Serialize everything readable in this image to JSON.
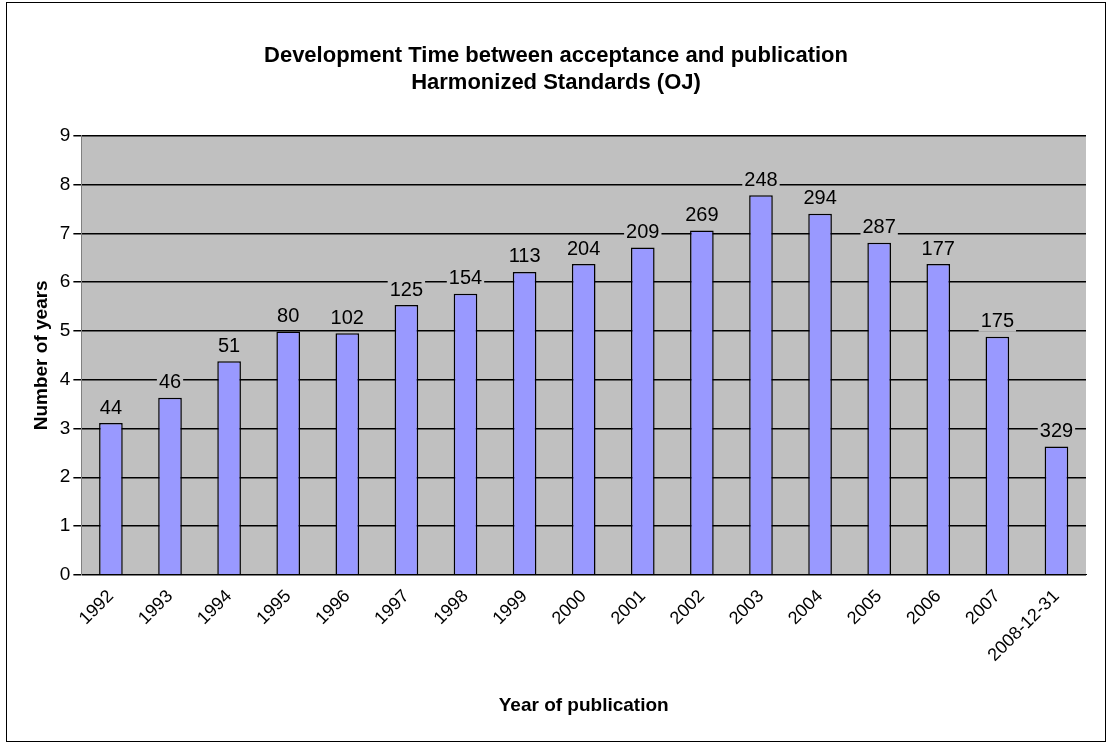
{
  "chart_data": {
    "type": "bar",
    "title": "Development Time between acceptance and publication\nHarmonized Standards (OJ)",
    "xlabel": "Year of publication",
    "ylabel": "Number of years",
    "categories": [
      "1992",
      "1993",
      "1994",
      "1995",
      "1996",
      "1997",
      "1998",
      "1999",
      "2000",
      "2001",
      "2002",
      "2003",
      "2004",
      "2005",
      "2006",
      "2007",
      "2008-12-31"
    ],
    "values": [
      3.11,
      3.63,
      4.38,
      4.99,
      4.95,
      5.53,
      5.76,
      6.21,
      6.37,
      6.71,
      7.06,
      7.78,
      7.4,
      6.81,
      6.37,
      4.88,
      2.63
    ],
    "annotations": [
      {
        "text": "44",
        "x": "1992",
        "y": 3.11
      },
      {
        "text": "46",
        "x": "1993",
        "y": 3.63
      },
      {
        "text": "51",
        "x": "1994",
        "y": 4.38
      },
      {
        "text": "80",
        "x": "1995",
        "y": 4.99
      },
      {
        "text": "102",
        "x": "1996",
        "y": 4.95
      },
      {
        "text": "125",
        "x": "1997",
        "y": 5.53
      },
      {
        "text": "154",
        "x": "1998",
        "y": 5.76
      },
      {
        "text": "113",
        "x": "1999",
        "y": 6.21
      },
      {
        "text": "204",
        "x": "2000",
        "y": 6.37
      },
      {
        "text": "209",
        "x": "2001",
        "y": 6.71
      },
      {
        "text": "269",
        "x": "2002",
        "y": 7.06
      },
      {
        "text": "248",
        "x": "2003",
        "y": 7.78
      },
      {
        "text": "294",
        "x": "2004",
        "y": 7.4
      },
      {
        "text": "287",
        "x": "2005",
        "y": 6.81
      },
      {
        "text": "177",
        "x": "2006",
        "y": 6.37
      },
      {
        "text": "175",
        "x": "2007",
        "y": 4.88
      },
      {
        "text": "329",
        "x": "2008-12-31",
        "y": 2.63
      }
    ],
    "color": "#9999ff",
    "ylim": [
      0,
      9
    ],
    "yticks": [
      0,
      1,
      2,
      3,
      4,
      5,
      6,
      7,
      8,
      9
    ],
    "grid": "y"
  }
}
